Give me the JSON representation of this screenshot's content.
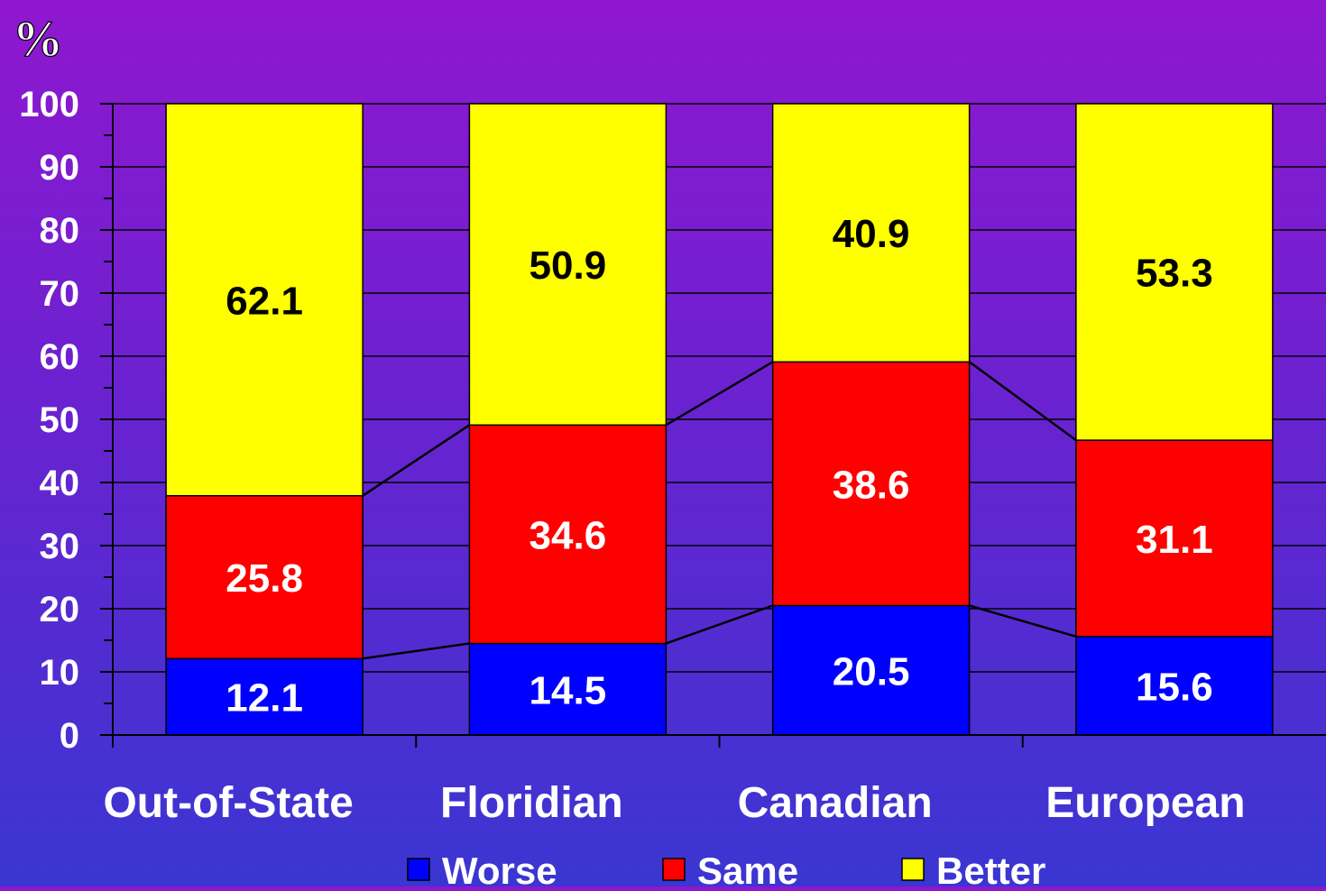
{
  "chart_data": {
    "type": "bar",
    "stacked": true,
    "unit_label": "%",
    "title": "",
    "xlabel": "",
    "ylabel": "%",
    "ylim": [
      0,
      100
    ],
    "y_ticks": [
      0,
      10,
      20,
      30,
      40,
      50,
      60,
      70,
      80,
      90,
      100
    ],
    "categories": [
      "Out-of-State",
      "Floridian",
      "Canadian",
      "European"
    ],
    "series": [
      {
        "name": "Worse",
        "color": "#0000ff",
        "label_color": "#ffffff",
        "values": [
          12.1,
          14.5,
          20.5,
          15.6
        ]
      },
      {
        "name": "Same",
        "color": "#ff0000",
        "label_color": "#ffffff",
        "values": [
          25.8,
          34.6,
          38.6,
          31.1
        ]
      },
      {
        "name": "Better",
        "color": "#ffff00",
        "label_color": "#000000",
        "values": [
          62.1,
          50.9,
          40.9,
          53.3
        ]
      }
    ],
    "series_lines": true,
    "grid": true,
    "legend_position": "bottom"
  }
}
